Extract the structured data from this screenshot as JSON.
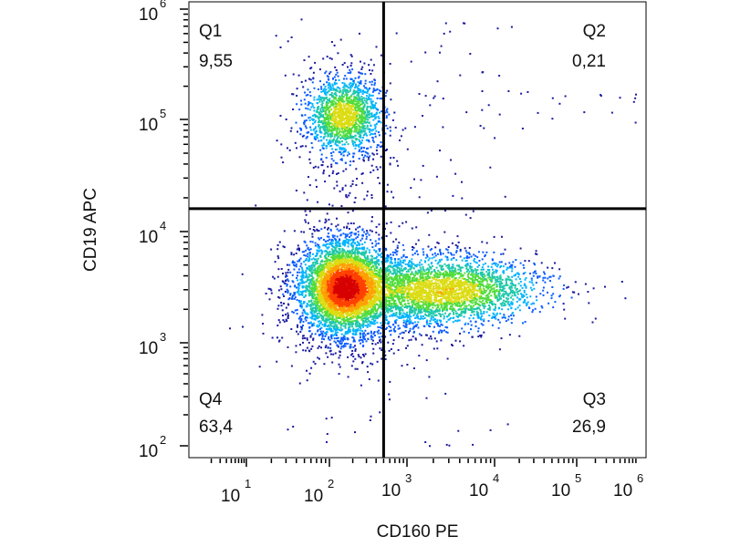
{
  "chart_data": {
    "type": "scatter",
    "style": "density dot plot with quadrant gates",
    "xlabel": "CD160 PE",
    "ylabel": "CD19 APC",
    "x_scale": "log",
    "y_scale": "log",
    "x_ticks": [
      {
        "base": "10",
        "exp": "1",
        "value": 10
      },
      {
        "base": "10",
        "exp": "2",
        "value": 100
      },
      {
        "base": "10",
        "exp": "3",
        "value": 1000
      },
      {
        "base": "10",
        "exp": "4",
        "value": 10000
      },
      {
        "base": "10",
        "exp": "5",
        "value": 100000
      },
      {
        "base": "10",
        "exp": "6",
        "value": 1000000
      }
    ],
    "y_ticks": [
      {
        "base": "10",
        "exp": "2",
        "value": 100
      },
      {
        "base": "10",
        "exp": "3",
        "value": 1000
      },
      {
        "base": "10",
        "exp": "4",
        "value": 10000
      },
      {
        "base": "10",
        "exp": "5",
        "value": 100000
      },
      {
        "base": "10",
        "exp": "6",
        "value": 1000000
      }
    ],
    "gate": {
      "x": 500,
      "y": 16000
    },
    "quadrants": [
      {
        "name": "Q1",
        "percent": "9,55",
        "position": "top-left"
      },
      {
        "name": "Q2",
        "percent": "0,21",
        "position": "top-right"
      },
      {
        "name": "Q3",
        "percent": "26,9",
        "position": "bottom-right"
      },
      {
        "name": "Q4",
        "percent": "63,4",
        "position": "bottom-left"
      }
    ],
    "populations": [
      {
        "quadrant": "Q4",
        "x_center": 150,
        "y_center": 3200,
        "density": "highest"
      },
      {
        "quadrant": "Q3",
        "x_center": 2500,
        "y_center": 3000,
        "density": "medium"
      },
      {
        "quadrant": "Q1",
        "x_center": 150,
        "y_center": 110000,
        "density": "medium"
      }
    ],
    "colors": {
      "density_scale": [
        "#1a1aa0",
        "#0a5cff",
        "#00b4ff",
        "#1ec8aa",
        "#50dc3c",
        "#dcdc14",
        "#ffa000",
        "#ff4000",
        "#d70000"
      ],
      "gate_line": "#000000"
    }
  }
}
